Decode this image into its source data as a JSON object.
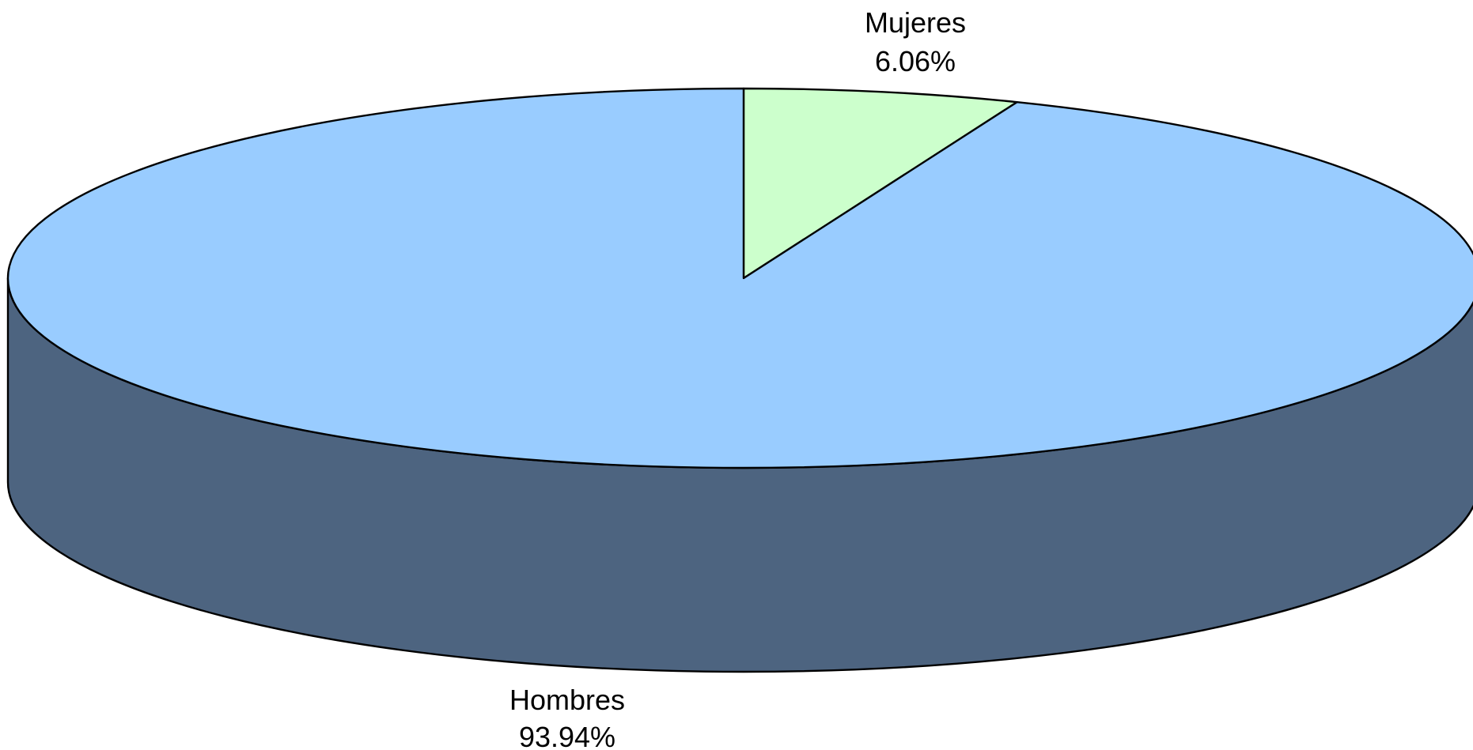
{
  "chart_data": {
    "type": "pie",
    "style": "3d",
    "slices": [
      {
        "label": "Mujeres",
        "value": 6.06,
        "value_label": "6.06%",
        "color": "#CCFFCC"
      },
      {
        "label": "Hombres",
        "value": 93.94,
        "value_label": "93.94%",
        "color": "#99CCFF",
        "side_color": "#4D6480"
      }
    ],
    "outline_color": "#000000",
    "legend": "none"
  }
}
